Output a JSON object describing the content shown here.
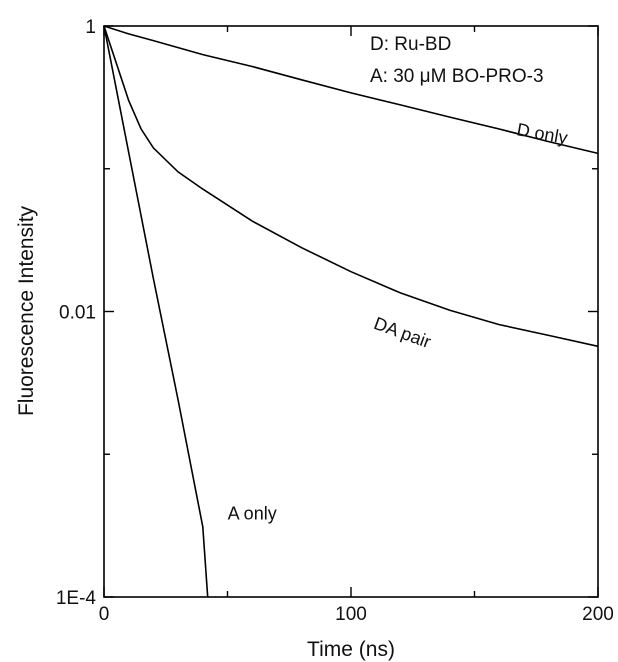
{
  "chart_data": {
    "type": "line",
    "title": "",
    "xlabel": "Time (ns)",
    "ylabel": "Fluorescence Intensity",
    "xlim": [
      0,
      200
    ],
    "ylim": [
      0.0001,
      1
    ],
    "yscale": "log",
    "grid": false,
    "x_ticks": [
      {
        "value": 0,
        "label": "0"
      },
      {
        "value": 100,
        "label": "100"
      },
      {
        "value": 200,
        "label": "200"
      }
    ],
    "x_minor_ticks": [
      50,
      150
    ],
    "y_ticks": [
      {
        "value": 1,
        "label": "1"
      },
      {
        "value": 0.01,
        "label": "0.01"
      },
      {
        "value": 0.0001,
        "label": "1E-4"
      }
    ],
    "y_minor_ticks": [
      0.1,
      0.001
    ],
    "legend": {
      "placement": "top-right",
      "lines": [
        "D: Ru-BD",
        "A: 30 μM BO-PRO-3"
      ]
    },
    "series": [
      {
        "name": "D only",
        "x": [
          0,
          10,
          20,
          40,
          60,
          80,
          100,
          120,
          140,
          160,
          180,
          200
        ],
        "y": [
          1.0,
          0.88,
          0.79,
          0.63,
          0.52,
          0.42,
          0.34,
          0.28,
          0.23,
          0.19,
          0.155,
          0.128
        ]
      },
      {
        "name": "DA pair",
        "x": [
          0,
          5,
          10,
          15,
          20,
          30,
          40,
          60,
          80,
          100,
          120,
          140,
          160,
          180,
          200
        ],
        "y": [
          1.0,
          0.55,
          0.3,
          0.19,
          0.14,
          0.095,
          0.072,
          0.043,
          0.028,
          0.019,
          0.0135,
          0.0102,
          0.0081,
          0.0068,
          0.0057
        ]
      },
      {
        "name": "A only",
        "x": [
          0,
          10,
          20,
          30,
          40,
          42
        ],
        "y": [
          1.0,
          0.13,
          0.017,
          0.0024,
          0.00031,
          0.0001
        ]
      }
    ],
    "curve_labels": [
      {
        "series": "D only",
        "text": "D only",
        "x": 177,
        "y": 0.16,
        "rotate": 10
      },
      {
        "series": "DA pair",
        "text": "DA pair",
        "x": 120,
        "y": 0.0065,
        "rotate": 20
      },
      {
        "series": "A only",
        "text": "A only",
        "x": 60,
        "y": 0.00035,
        "rotate": 0
      }
    ]
  }
}
